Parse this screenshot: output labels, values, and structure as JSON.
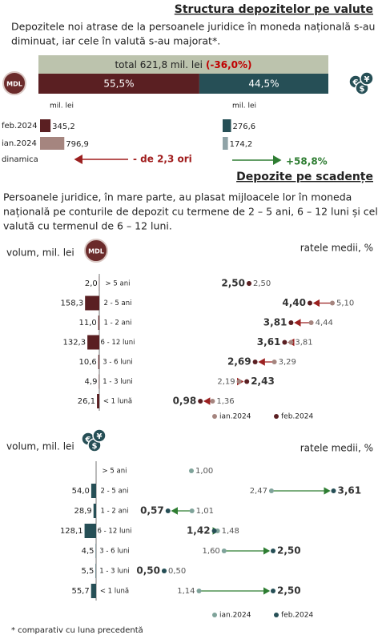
{
  "sections": [
    {
      "title": "Structura depozitelor pe valute",
      "intro": [
        "Depozitele noi atrase de la persoanele juridice  în moneda națională s-au",
        "diminuat, iar cele  în valută s-au majorat*."
      ]
    },
    {
      "title": "Depozite pe scadențe",
      "intro": [
        "Persoanele juridice, în mare parte, au plasat mijloacele lor în moneda",
        "națională pe conturile de depozit cu termene de 2 – 5 ani, 6 – 12 luni și cele în",
        "valută cu termenul de 6 – 12 luni."
      ]
    }
  ],
  "fx_icon": [
    "€",
    "$",
    "¥"
  ],
  "mdl_icon": "MDL",
  "footnote": "* comparativ cu luna precedentă",
  "chart_data": [
    {
      "type": "stacked-bar",
      "total_label": "total 621,8 mil. lei",
      "total_change": "(-36,0%)",
      "xlim": [
        0,
        100
      ],
      "series": [
        {
          "name": "MDL",
          "color": "#5a1f22",
          "values": [
            55.5
          ],
          "value_labels": [
            "55,5%"
          ]
        },
        {
          "color": "#264f56",
          "values": [
            44.5
          ],
          "value_labels": [
            "44,5%"
          ]
        }
      ]
    },
    {
      "type": "compare-bar",
      "unit_label": "mil. lei",
      "categories": [
        "feb.2024",
        "ian.2024"
      ],
      "change_category": "dinamica",
      "xlim": [
        0,
        1000
      ],
      "series": [
        {
          "colors": [
            "#5a1f22",
            "#a5857f"
          ],
          "values": [
            345.2,
            796.9
          ],
          "value_labels": [
            "345,2",
            "796,9"
          ],
          "change_label": "- de 2,3 ori",
          "change_color": "#a01c1c"
        },
        {
          "colors": [
            "#264f56",
            "#8fa3a7"
          ],
          "values": [
            276.6,
            174.2
          ],
          "value_labels": [
            "276,6",
            "174,2"
          ],
          "change_label": "+58,8%",
          "change_color": "#2e7d32"
        }
      ]
    },
    {
      "type": "maturity",
      "volume_label": "volum, mil. lei",
      "rate_label": "ratele medii, %",
      "icon": "mdl",
      "arrow_color": "#9b2020",
      "categories": [
        "> 5 ani",
        "2 - 5 ani",
        "1 - 2 ani",
        "6 - 12 luni",
        "3 - 6 luni",
        "1 - 3 luni",
        "< 1 lună"
      ],
      "volume": {
        "color": "#5a1f22",
        "xlim": [
          0,
          160
        ],
        "values": [
          2.0,
          158.3,
          11.0,
          132.3,
          10.6,
          4.9,
          26.1
        ],
        "value_labels": [
          "2,0",
          "158,3",
          "11,0",
          "132,3",
          "10,6",
          "4,9",
          "26,1"
        ]
      },
      "xlim": [
        0,
        6
      ],
      "series": [
        {
          "name": "ian.2024",
          "color": "#a5857f",
          "values": [
            2.5,
            5.1,
            4.44,
            3.81,
            3.29,
            2.19,
            1.36
          ],
          "value_labels": [
            "2,50",
            "5,10",
            "4,44",
            "3,81",
            "3,29",
            "2,19",
            "1,36"
          ]
        },
        {
          "name": "feb.2024",
          "color": "#5a1f22",
          "values": [
            2.5,
            4.4,
            3.81,
            3.61,
            2.69,
            2.43,
            0.98
          ],
          "value_labels": [
            "2,50",
            "4,40",
            "3,81",
            "3,61",
            "2,69",
            "2,43",
            "0,98"
          ]
        }
      ]
    },
    {
      "type": "maturity",
      "volume_label": "volum, mil. lei",
      "rate_label": "ratele medii, %",
      "icon": "fx",
      "arrow_color": "#2e7d32",
      "categories": [
        "> 5 ani",
        "2 - 5 ani",
        "1 - 2 ani",
        "6 - 12 luni",
        "3 - 6 luni",
        "1 - 3 luni",
        "< 1 lună"
      ],
      "volume": {
        "color": "#264f56",
        "xlim": [
          0,
          160
        ],
        "values": [
          null,
          54.0,
          28.9,
          128.1,
          4.5,
          5.5,
          55.7
        ],
        "value_labels": [
          null,
          "54,0",
          "28,9",
          "128,1",
          "4,5",
          "5,5",
          "55,7"
        ]
      },
      "xlim": [
        0,
        4
      ],
      "series": [
        {
          "name": "ian.2024",
          "color": "#7fa39a",
          "values": [
            1.0,
            2.47,
            1.01,
            1.48,
            1.6,
            0.5,
            1.14
          ],
          "value_labels": [
            "1,00",
            "2,47",
            "1,01",
            "1,48",
            "1,60",
            "0,50",
            "1,14"
          ]
        },
        {
          "name": "feb.2024",
          "color": "#264f56",
          "values": [
            null,
            3.61,
            0.57,
            1.42,
            2.5,
            0.5,
            2.5
          ],
          "value_labels": [
            null,
            "3,61",
            "0,57",
            "1,42",
            "2,50",
            "0,50",
            "2,50"
          ]
        }
      ]
    }
  ]
}
